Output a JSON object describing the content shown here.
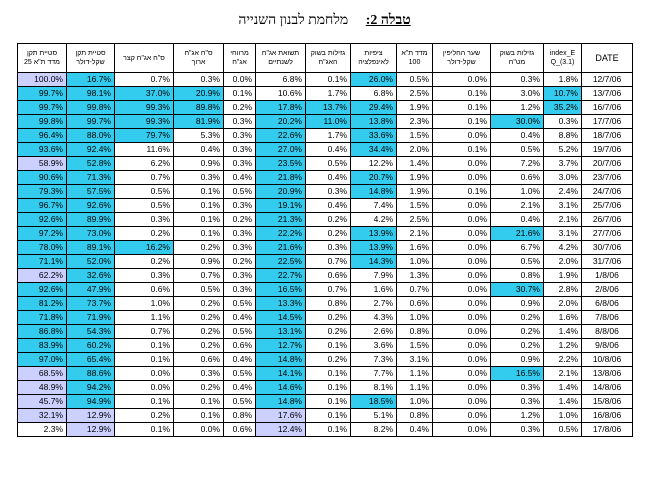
{
  "title": {
    "bold": "טבלה 2:",
    "text": "מלחמת לבנון השנייה"
  },
  "colors": {
    "cyan": "#33ccee",
    "lavender": "#ccd0ff"
  },
  "headers": [
    "סטיית תקן מדד ת\"א 25",
    "סטיית תקן שקל-דולר",
    "ס\"ח אג\"ח קצר",
    "ס\"ח אג\"ח ארוך",
    "מרווחי אג\"ח",
    "תשואת אג\"ח לשנתיים",
    "גזילות בשוק האג\"ח",
    "ציפיות לאינפלציה",
    "מדד ת\"א 100",
    "שער החליפין שקל-דולר",
    "גזילות בשוק מט\"ח",
    "index_E Q_(3.1)",
    "DATE"
  ],
  "rows": [
    {
      "cells": [
        "100.0%",
        "16.7%",
        "0.7%",
        "0.3%",
        "0.0%",
        "6.8%",
        "0.1%",
        "26.0%",
        "0.5%",
        "0.0%",
        "0.3%",
        "1.8%",
        "12/7/06"
      ],
      "hl": [
        "l",
        "c",
        "",
        "",
        "",
        "",
        "",
        "c",
        "",
        "",
        "",
        "",
        ""
      ]
    },
    {
      "cells": [
        "99.7%",
        "98.1%",
        "37.0%",
        "20.9%",
        "0.1%",
        "10.6%",
        "1.7%",
        "6.8%",
        "2.5%",
        "0.1%",
        "3.0%",
        "10.7%",
        "13/7/06"
      ],
      "hl": [
        "c",
        "c",
        "c",
        "c",
        "",
        "",
        "",
        "",
        "",
        "",
        "",
        "c",
        ""
      ]
    },
    {
      "cells": [
        "99.7%",
        "99.8%",
        "99.3%",
        "89.8%",
        "0.2%",
        "17.8%",
        "13.7%",
        "29.4%",
        "1.9%",
        "0.1%",
        "1.2%",
        "35.2%",
        "16/7/06"
      ],
      "hl": [
        "c",
        "c",
        "c",
        "c",
        "",
        "c",
        "c",
        "c",
        "",
        "",
        "",
        "c",
        ""
      ]
    },
    {
      "cells": [
        "99.8%",
        "99.7%",
        "99.3%",
        "81.9%",
        "0.3%",
        "20.2%",
        "11.0%",
        "13.8%",
        "2.3%",
        "0.1%",
        "30.0%",
        "0.3%",
        "17/7/06"
      ],
      "hl": [
        "c",
        "c",
        "c",
        "c",
        "",
        "c",
        "c",
        "c",
        "",
        "",
        "c",
        "",
        ""
      ]
    },
    {
      "cells": [
        "96.4%",
        "88.0%",
        "79.7%",
        "5.3%",
        "0.3%",
        "22.6%",
        "1.7%",
        "33.6%",
        "1.5%",
        "0.0%",
        "0.4%",
        "8.8%",
        "18/7/06"
      ],
      "hl": [
        "c",
        "c",
        "c",
        "",
        "",
        "c",
        "",
        "c",
        "",
        "",
        "",
        "",
        ""
      ]
    },
    {
      "cells": [
        "93.6%",
        "92.4%",
        "11.6%",
        "0.4%",
        "0.3%",
        "27.0%",
        "0.4%",
        "34.4%",
        "2.0%",
        "0.1%",
        "0.5%",
        "5.2%",
        "19/7/06"
      ],
      "hl": [
        "c",
        "c",
        "",
        "",
        "",
        "c",
        "",
        "c",
        "",
        "",
        "",
        "",
        ""
      ]
    },
    {
      "cells": [
        "58.9%",
        "52.8%",
        "6.2%",
        "0.9%",
        "0.3%",
        "23.5%",
        "0.5%",
        "12.2%",
        "1.4%",
        "0.0%",
        "7.2%",
        "3.7%",
        "20/7/06"
      ],
      "hl": [
        "l",
        "c",
        "",
        "",
        "",
        "c",
        "",
        "",
        "",
        "",
        "",
        "",
        ""
      ]
    },
    {
      "cells": [
        "90.6%",
        "71.3%",
        "0.7%",
        "0.3%",
        "0.4%",
        "21.8%",
        "0.4%",
        "20.7%",
        "1.9%",
        "0.0%",
        "0.6%",
        "3.0%",
        "23/7/06"
      ],
      "hl": [
        "c",
        "c",
        "",
        "",
        "",
        "c",
        "",
        "c",
        "",
        "",
        "",
        "",
        ""
      ]
    },
    {
      "cells": [
        "79.3%",
        "57.5%",
        "0.5%",
        "0.1%",
        "0.5%",
        "20.9%",
        "0.3%",
        "14.8%",
        "1.9%",
        "0.1%",
        "1.0%",
        "2.4%",
        "24/7/06"
      ],
      "hl": [
        "c",
        "c",
        "",
        "",
        "",
        "c",
        "",
        "c",
        "",
        "",
        "",
        "",
        ""
      ]
    },
    {
      "cells": [
        "96.7%",
        "92.6%",
        "0.5%",
        "0.1%",
        "0.3%",
        "19.1%",
        "0.4%",
        "7.4%",
        "1.5%",
        "0.0%",
        "2.1%",
        "3.1%",
        "25/7/06"
      ],
      "hl": [
        "c",
        "c",
        "",
        "",
        "",
        "c",
        "",
        "",
        "",
        "",
        "",
        "",
        ""
      ]
    },
    {
      "cells": [
        "92.6%",
        "89.9%",
        "0.3%",
        "0.1%",
        "0.2%",
        "21.3%",
        "0.2%",
        "4.2%",
        "2.5%",
        "0.0%",
        "0.4%",
        "2.1%",
        "26/7/06"
      ],
      "hl": [
        "c",
        "c",
        "",
        "",
        "",
        "c",
        "",
        "",
        "",
        "",
        "",
        "",
        ""
      ]
    },
    {
      "cells": [
        "97.2%",
        "73.0%",
        "0.2%",
        "0.1%",
        "0.3%",
        "22.2%",
        "0.2%",
        "13.9%",
        "2.1%",
        "0.0%",
        "21.6%",
        "3.1%",
        "27/7/06"
      ],
      "hl": [
        "c",
        "c",
        "",
        "",
        "",
        "c",
        "",
        "c",
        "",
        "",
        "c",
        "",
        ""
      ]
    },
    {
      "cells": [
        "78.0%",
        "89.1%",
        "16.2%",
        "0.2%",
        "0.3%",
        "21.6%",
        "0.3%",
        "13.9%",
        "1.6%",
        "0.0%",
        "6.7%",
        "4.2%",
        "30/7/06"
      ],
      "hl": [
        "c",
        "c",
        "c",
        "",
        "",
        "c",
        "",
        "c",
        "",
        "",
        "",
        "",
        ""
      ]
    },
    {
      "cells": [
        "71.1%",
        "52.0%",
        "0.2%",
        "0.9%",
        "0.2%",
        "22.5%",
        "0.7%",
        "14.3%",
        "1.0%",
        "0.0%",
        "0.5%",
        "2.0%",
        "31/7/06"
      ],
      "hl": [
        "c",
        "c",
        "",
        "",
        "",
        "c",
        "",
        "c",
        "",
        "",
        "",
        "",
        ""
      ]
    },
    {
      "cells": [
        "62.2%",
        "32.6%",
        "0.3%",
        "0.7%",
        "0.3%",
        "22.7%",
        "0.6%",
        "7.9%",
        "1.3%",
        "0.0%",
        "0.8%",
        "1.9%",
        "1/8/06"
      ],
      "hl": [
        "l",
        "c",
        "",
        "",
        "",
        "c",
        "",
        "",
        "",
        "",
        "",
        "",
        ""
      ]
    },
    {
      "cells": [
        "92.6%",
        "47.9%",
        "0.6%",
        "0.5%",
        "0.3%",
        "16.5%",
        "0.7%",
        "1.6%",
        "0.7%",
        "0.0%",
        "30.7%",
        "2.8%",
        "2/8/06"
      ],
      "hl": [
        "c",
        "c",
        "",
        "",
        "",
        "c",
        "",
        "",
        "",
        "",
        "c",
        "",
        ""
      ]
    },
    {
      "cells": [
        "81.2%",
        "73.7%",
        "1.0%",
        "0.2%",
        "0.5%",
        "13.3%",
        "0.8%",
        "2.7%",
        "0.6%",
        "0.0%",
        "0.9%",
        "2.0%",
        "6/8/06"
      ],
      "hl": [
        "c",
        "c",
        "",
        "",
        "",
        "c",
        "",
        "",
        "",
        "",
        "",
        "",
        ""
      ]
    },
    {
      "cells": [
        "71.8%",
        "71.9%",
        "1.1%",
        "0.2%",
        "0.4%",
        "14.5%",
        "0.2%",
        "4.3%",
        "1.0%",
        "0.0%",
        "0.2%",
        "1.6%",
        "7/8/06"
      ],
      "hl": [
        "c",
        "c",
        "",
        "",
        "",
        "c",
        "",
        "",
        "",
        "",
        "",
        "",
        ""
      ]
    },
    {
      "cells": [
        "86.8%",
        "54.3%",
        "0.7%",
        "0.2%",
        "0.5%",
        "13.1%",
        "0.2%",
        "2.6%",
        "0.8%",
        "0.0%",
        "0.2%",
        "1.4%",
        "8/8/06"
      ],
      "hl": [
        "c",
        "c",
        "",
        "",
        "",
        "c",
        "",
        "",
        "",
        "",
        "",
        "",
        ""
      ]
    },
    {
      "cells": [
        "83.9%",
        "60.2%",
        "0.1%",
        "0.2%",
        "0.6%",
        "12.7%",
        "0.1%",
        "3.6%",
        "1.5%",
        "0.0%",
        "0.2%",
        "1.2%",
        "9/8/06"
      ],
      "hl": [
        "c",
        "c",
        "",
        "",
        "",
        "c",
        "",
        "",
        "",
        "",
        "",
        "",
        ""
      ]
    },
    {
      "cells": [
        "97.0%",
        "65.4%",
        "0.1%",
        "0.6%",
        "0.4%",
        "14.8%",
        "0.2%",
        "7.3%",
        "3.1%",
        "0.0%",
        "0.9%",
        "2.2%",
        "10/8/06"
      ],
      "hl": [
        "c",
        "c",
        "",
        "",
        "",
        "c",
        "",
        "",
        "",
        "",
        "",
        "",
        ""
      ]
    },
    {
      "cells": [
        "68.5%",
        "88.6%",
        "0.0%",
        "0.3%",
        "0.5%",
        "14.1%",
        "0.1%",
        "7.7%",
        "1.1%",
        "0.0%",
        "16.5%",
        "2.1%",
        "13/8/06"
      ],
      "hl": [
        "l",
        "c",
        "",
        "",
        "",
        "c",
        "",
        "",
        "",
        "",
        "c",
        "",
        ""
      ]
    },
    {
      "cells": [
        "48.9%",
        "94.2%",
        "0.0%",
        "0.2%",
        "0.4%",
        "14.6%",
        "0.1%",
        "8.1%",
        "1.1%",
        "0.0%",
        "0.3%",
        "1.4%",
        "14/8/06"
      ],
      "hl": [
        "l",
        "c",
        "",
        "",
        "",
        "c",
        "",
        "",
        "",
        "",
        "",
        "",
        ""
      ]
    },
    {
      "cells": [
        "45.7%",
        "94.9%",
        "0.1%",
        "0.1%",
        "0.5%",
        "14.8%",
        "0.1%",
        "18.5%",
        "1.0%",
        "0.0%",
        "0.3%",
        "1.4%",
        "15/8/06"
      ],
      "hl": [
        "l",
        "c",
        "",
        "",
        "",
        "c",
        "",
        "c",
        "",
        "",
        "",
        "",
        ""
      ]
    },
    {
      "cells": [
        "32.1%",
        "12.9%",
        "0.2%",
        "0.1%",
        "0.8%",
        "17.6%",
        "0.1%",
        "5.1%",
        "0.8%",
        "0.0%",
        "1.2%",
        "1.0%",
        "16/8/06"
      ],
      "hl": [
        "l",
        "l",
        "",
        "",
        "",
        "l",
        "",
        "",
        "",
        "",
        "",
        "",
        ""
      ]
    },
    {
      "cells": [
        "2.3%",
        "12.9%",
        "0.1%",
        "0.0%",
        "0.6%",
        "12.4%",
        "0.1%",
        "8.2%",
        "0.4%",
        "0.0%",
        "0.3%",
        "0.5%",
        "17/8/06"
      ],
      "hl": [
        "",
        "l",
        "",
        "",
        "",
        "l",
        "",
        "",
        "",
        "",
        "",
        "",
        ""
      ]
    }
  ]
}
